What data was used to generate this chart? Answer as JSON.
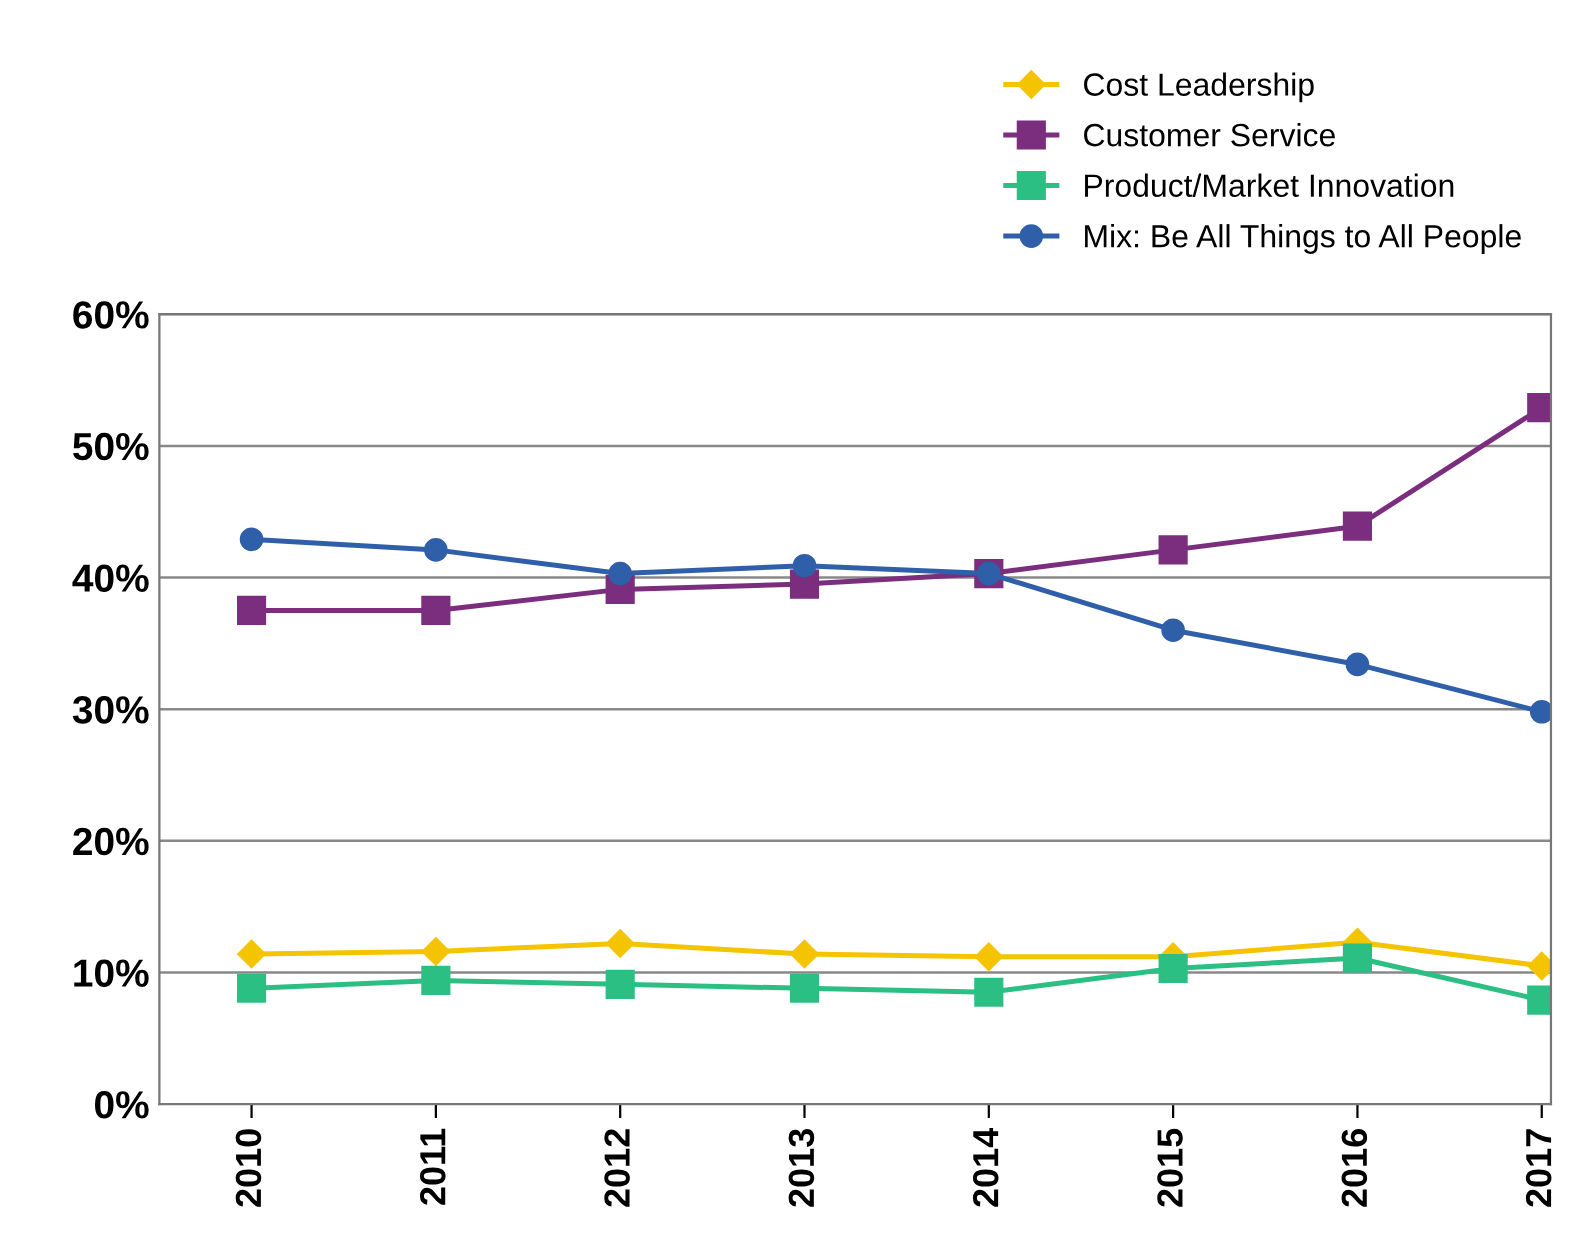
{
  "chart_data": {
    "type": "line",
    "categories": [
      "2010",
      "2011",
      "2012",
      "2013",
      "2014",
      "2015",
      "2016",
      "2017"
    ],
    "series": [
      {
        "name": "Cost Leadership",
        "color": "#f5c400",
        "marker": "diamond",
        "values": [
          11.4,
          11.6,
          12.2,
          11.4,
          11.2,
          11.2,
          12.3,
          10.5
        ]
      },
      {
        "name": "Customer Service",
        "color": "#7b2d7e",
        "marker": "square",
        "values": [
          37.5,
          37.5,
          39.1,
          39.5,
          40.3,
          42.1,
          43.9,
          52.9
        ]
      },
      {
        "name": "Product/Market Innovation",
        "color": "#2bbf84",
        "marker": "square",
        "values": [
          8.8,
          9.4,
          9.1,
          8.8,
          8.5,
          10.3,
          11.1,
          7.9
        ]
      },
      {
        "name": "Mix: Be All Things to All People",
        "color": "#2f5fa8",
        "marker": "circle",
        "values": [
          42.9,
          42.1,
          40.3,
          40.9,
          40.3,
          36.0,
          33.4,
          29.8
        ]
      }
    ],
    "ylim": [
      0,
      60
    ],
    "yticks": [
      {
        "value": 0,
        "label": "0%"
      },
      {
        "value": 10,
        "label": "10%"
      },
      {
        "value": 20,
        "label": "20%"
      },
      {
        "value": 30,
        "label": "30%"
      },
      {
        "value": 40,
        "label": "40%"
      },
      {
        "value": 50,
        "label": "50%"
      },
      {
        "value": 60,
        "label": "60%"
      }
    ],
    "grid": "y",
    "legend": "top right",
    "line_style": "solid"
  }
}
